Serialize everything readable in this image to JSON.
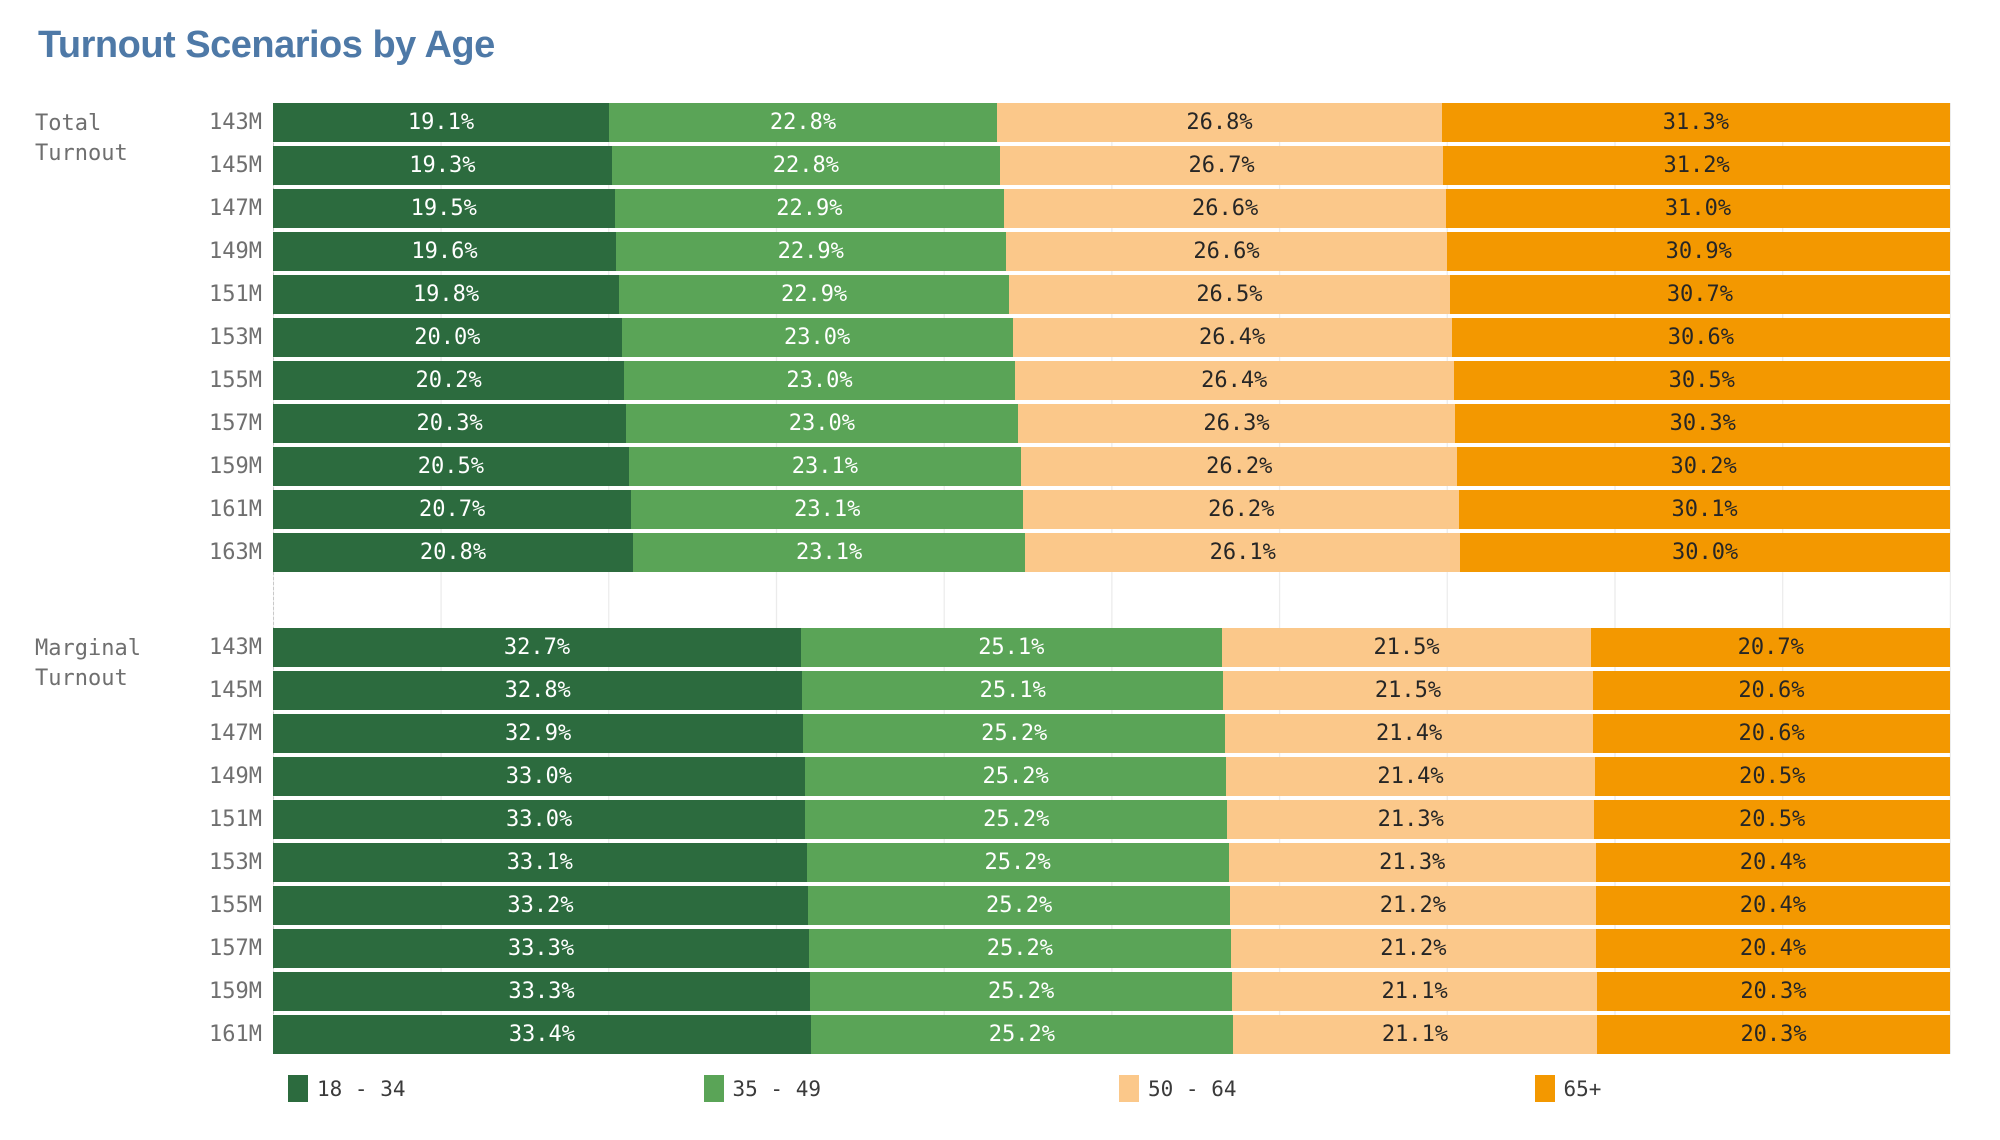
{
  "title": "Turnout Scenarios by Age",
  "chart_data": {
    "type": "bar",
    "orientation": "horizontal",
    "stacked": true,
    "value_unit": "%",
    "xlim": [
      0,
      100
    ],
    "gridline_spacing_pct": 10,
    "grid_color": "#ebebeb",
    "zero_axis_style": "dashed",
    "legend_position": "bottom",
    "series": [
      {
        "name": "18 - 34",
        "color": "#2c6b3e"
      },
      {
        "name": "35 - 49",
        "color": "#5aa457"
      },
      {
        "name": "50 - 64",
        "color": "#fbc88a"
      },
      {
        "name": "65+",
        "color": "#f39800"
      }
    ],
    "sections": [
      {
        "label": "Total Turnout",
        "rows": [
          {
            "category": "143M",
            "values": [
              19.1,
              22.8,
              26.8,
              31.3
            ]
          },
          {
            "category": "145M",
            "values": [
              19.3,
              22.8,
              26.7,
              31.2
            ]
          },
          {
            "category": "147M",
            "values": [
              19.5,
              22.9,
              26.6,
              31.0
            ]
          },
          {
            "category": "149M",
            "values": [
              19.6,
              22.9,
              26.6,
              30.9
            ]
          },
          {
            "category": "151M",
            "values": [
              19.8,
              22.9,
              26.5,
              30.7
            ]
          },
          {
            "category": "153M",
            "values": [
              20.0,
              23.0,
              26.4,
              30.6
            ]
          },
          {
            "category": "155M",
            "values": [
              20.2,
              23.0,
              26.4,
              30.5
            ]
          },
          {
            "category": "157M",
            "values": [
              20.3,
              23.0,
              26.3,
              30.3
            ]
          },
          {
            "category": "159M",
            "values": [
              20.5,
              23.1,
              26.2,
              30.2
            ]
          },
          {
            "category": "161M",
            "values": [
              20.7,
              23.1,
              26.2,
              30.1
            ]
          },
          {
            "category": "163M",
            "values": [
              20.8,
              23.1,
              26.1,
              30.0
            ]
          }
        ]
      },
      {
        "label": "Marginal Turnout",
        "rows": [
          {
            "category": "143M",
            "values": [
              32.7,
              25.1,
              21.5,
              20.7
            ]
          },
          {
            "category": "145M",
            "values": [
              32.8,
              25.1,
              21.5,
              20.6
            ]
          },
          {
            "category": "147M",
            "values": [
              32.9,
              25.2,
              21.4,
              20.6
            ]
          },
          {
            "category": "149M",
            "values": [
              33.0,
              25.2,
              21.4,
              20.5
            ]
          },
          {
            "category": "151M",
            "values": [
              33.0,
              25.2,
              21.3,
              20.5
            ]
          },
          {
            "category": "153M",
            "values": [
              33.1,
              25.2,
              21.3,
              20.4
            ]
          },
          {
            "category": "155M",
            "values": [
              33.2,
              25.2,
              21.2,
              20.4
            ]
          },
          {
            "category": "157M",
            "values": [
              33.3,
              25.2,
              21.2,
              20.4
            ]
          },
          {
            "category": "159M",
            "values": [
              33.3,
              25.2,
              21.1,
              20.3
            ]
          },
          {
            "category": "161M",
            "values": [
              33.4,
              25.2,
              21.1,
              20.3
            ]
          }
        ]
      }
    ]
  }
}
